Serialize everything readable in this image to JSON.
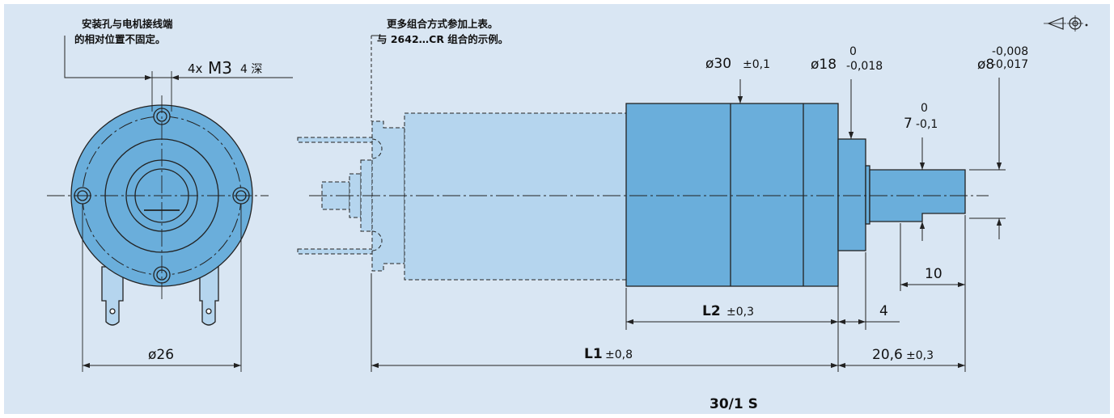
{
  "colors": {
    "background": "#d9e6f3",
    "page": "#ffffff",
    "motor_fill": "#6aaedb",
    "ghost_fill": "#b5d5ee",
    "line": "#222222"
  },
  "notes": {
    "mount_line1": "安装孔与电机接线端",
    "mount_line2": "的相对位置不固定。",
    "combo_line1": "更多组合方式参加上表。",
    "combo_line2": "与 2642…CR 组合的示例。"
  },
  "dims": {
    "m3_prefix": "4x",
    "m3_size": "M3",
    "m3_depth": "4 深",
    "d30": "ø30",
    "d30_tol": "±0,1",
    "d18": "ø18",
    "d18_upper": "0",
    "d18_lower": "-0,018",
    "d8": "ø8",
    "d8_upper": "-0,008",
    "d8_lower": "-0,017",
    "key_value": "7",
    "key_upper": "0",
    "key_lower": "-0,1",
    "d26": "ø26",
    "shaft10": "10",
    "step4": "4",
    "l2": "L2",
    "l2_tol": "±0,3",
    "l1": "L1",
    "l1_tol": "±0,8",
    "tail": "20,6",
    "tail_tol": "±0,3"
  },
  "caption": "30/1 S",
  "symbols": [
    "projection-symbol-icon"
  ]
}
